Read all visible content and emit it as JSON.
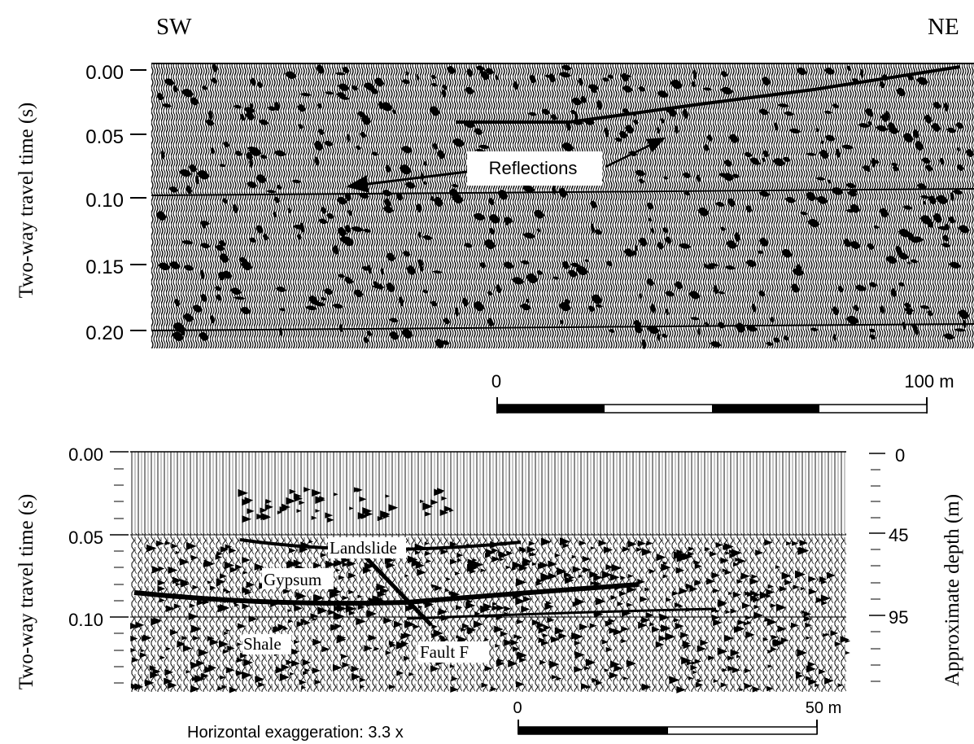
{
  "top_panel": {
    "direction_left": "SW",
    "direction_right": "NE",
    "y_axis_label": "Two-way travel time (s)",
    "y_ticks": [
      "0.00",
      "0.05",
      "0.10",
      "0.15",
      "0.20"
    ],
    "annotation": "Reflections",
    "scale_bar": {
      "start_label": "0",
      "end_label": "100 m"
    }
  },
  "bottom_panel": {
    "y_axis_label_left": "Two-way travel time (s)",
    "y_ticks_left": [
      "0.00",
      "0.05",
      "0.10"
    ],
    "y_axis_label_right": "Approximate depth (m)",
    "y_ticks_right": [
      "0",
      "45",
      "95"
    ],
    "labels": {
      "landslide": "Landslide",
      "gypsum": "Gypsum",
      "shale": "Shale",
      "fault": "Fault F"
    },
    "scale_bar": {
      "start_label": "0",
      "end_label": "50 m"
    },
    "exaggeration_note": "Horizontal exaggeration: 3.3 x"
  }
}
